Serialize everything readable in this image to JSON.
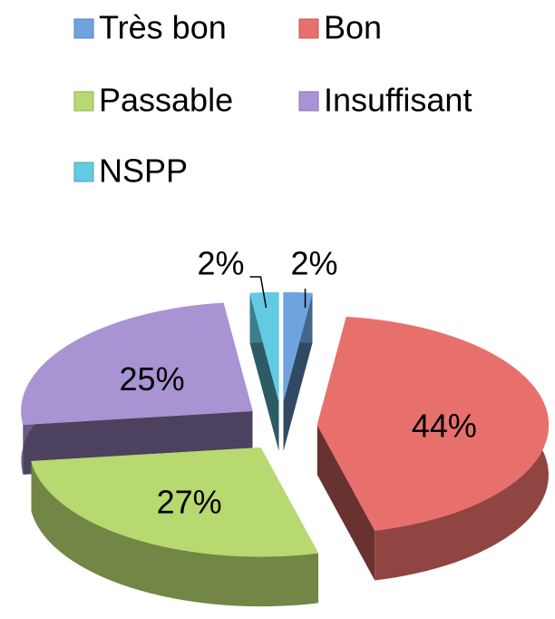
{
  "chart_data": {
    "type": "pie3d",
    "categories": [
      "Très bon",
      "Bon",
      "Passable",
      "Insuffisant",
      "NSPP"
    ],
    "values": [
      2,
      44,
      27,
      25,
      2
    ],
    "value_labels": [
      "2%",
      "44%",
      "27%",
      "25%",
      "2%"
    ],
    "colors": [
      "#6fa3e0",
      "#e8706c",
      "#b8d870",
      "#a893d3",
      "#62cbe3"
    ],
    "legend": "top"
  }
}
